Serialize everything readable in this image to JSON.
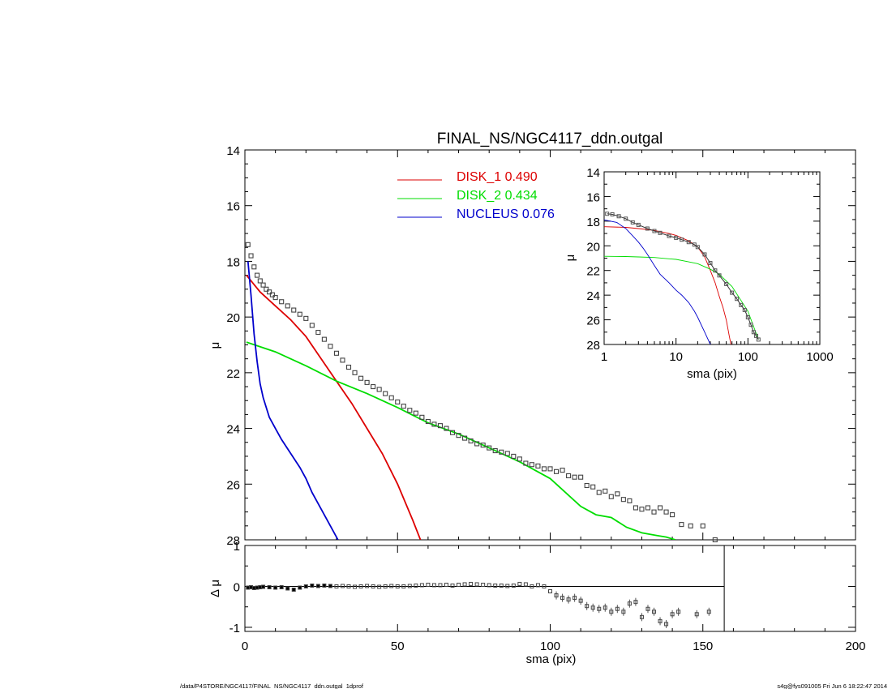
{
  "chart_data": [
    {
      "type": "scatter",
      "panel": "main profile",
      "title": "FINAL_NS/NGC4117_ddn.outgal",
      "xlabel": "",
      "ylabel": "μ",
      "xlim": [
        0,
        200
      ],
      "ylim": [
        28,
        14
      ],
      "yaxis_inverted": true,
      "xticks": [],
      "yticks": [
        "14",
        "16",
        "18",
        "20",
        "22",
        "24",
        "26",
        "28"
      ],
      "legend_placement": "top-center",
      "colors": {
        "data": "#444444",
        "disk1": "#dd0000",
        "disk2": "#00dd00",
        "nucleus": "#0000cc",
        "axes": "#000000"
      },
      "series": [
        {
          "name": "DISK_1",
          "fraction": "0.490",
          "color": "#dd0000",
          "x": [
            0.5,
            5,
            10,
            15,
            20,
            25,
            30,
            35,
            40,
            45,
            50,
            55,
            57.5
          ],
          "y": [
            18.5,
            19.1,
            19.6,
            20.1,
            20.7,
            21.5,
            22.3,
            23.1,
            24.0,
            24.9,
            26.0,
            27.3,
            28.0
          ]
        },
        {
          "name": "DISK_2",
          "fraction": "0.434",
          "color": "#00dd00",
          "x": [
            0.5,
            10,
            20,
            30,
            40,
            50,
            60,
            70,
            80,
            90,
            100,
            105,
            110,
            115,
            120,
            125,
            130,
            135,
            138,
            141
          ],
          "y": [
            20.9,
            21.25,
            21.75,
            22.3,
            22.75,
            23.25,
            23.8,
            24.2,
            24.7,
            25.2,
            25.8,
            26.3,
            26.8,
            27.1,
            27.2,
            27.55,
            27.75,
            27.85,
            27.9,
            28.0
          ]
        },
        {
          "name": "NUCLEUS",
          "fraction": "0.076",
          "color": "#0000cc",
          "x": [
            1,
            2,
            3,
            4,
            5,
            6,
            8,
            10,
            12,
            15,
            18,
            20,
            22,
            25,
            28,
            30.5
          ],
          "y": [
            18.0,
            19.2,
            20.6,
            21.6,
            22.4,
            22.9,
            23.6,
            24.0,
            24.4,
            24.9,
            25.4,
            25.8,
            26.3,
            26.9,
            27.5,
            28.0
          ]
        },
        {
          "name": "",
          "x": [
            1,
            2,
            3,
            4,
            5,
            6,
            7,
            8,
            9,
            10,
            12,
            14,
            16,
            18,
            20,
            22,
            24,
            26,
            28,
            30,
            32,
            34,
            36,
            38,
            40,
            42,
            44,
            46,
            48,
            50,
            52,
            54,
            56,
            58,
            60,
            62,
            64,
            66,
            68,
            70,
            72,
            74,
            76,
            78,
            80,
            82,
            84,
            86,
            88,
            90,
            92,
            94,
            96,
            98,
            100,
            102,
            104,
            106,
            108,
            110,
            112,
            114,
            116,
            118,
            120,
            122,
            124,
            126,
            128,
            130,
            132,
            134,
            136,
            138,
            140,
            143,
            146,
            150,
            154
          ],
          "y": [
            17.4,
            17.8,
            18.2,
            18.5,
            18.7,
            18.85,
            19.0,
            19.1,
            19.2,
            19.3,
            19.45,
            19.6,
            19.75,
            19.9,
            20.05,
            20.3,
            20.55,
            20.8,
            21.05,
            21.3,
            21.55,
            21.8,
            22.0,
            22.2,
            22.35,
            22.5,
            22.6,
            22.75,
            22.9,
            23.05,
            23.2,
            23.35,
            23.45,
            23.6,
            23.75,
            23.85,
            23.9,
            24.0,
            24.15,
            24.25,
            24.35,
            24.45,
            24.55,
            24.6,
            24.7,
            24.8,
            24.85,
            24.9,
            25.0,
            25.1,
            25.25,
            25.3,
            25.35,
            25.45,
            25.45,
            25.55,
            25.5,
            25.7,
            25.75,
            25.75,
            26.05,
            26.1,
            26.3,
            26.25,
            26.45,
            26.35,
            26.55,
            26.6,
            26.85,
            26.9,
            26.85,
            27.0,
            26.85,
            27.0,
            27.1,
            27.45,
            27.5,
            27.5,
            28.0
          ]
        }
      ]
    },
    {
      "type": "scatter",
      "panel": "residuals",
      "xlabel": "sma (pix)",
      "ylabel": "Δ μ",
      "xlim": [
        0,
        200
      ],
      "ylim": [
        -1.1,
        1.0
      ],
      "xticks": [
        "0",
        "50",
        "100",
        "150",
        "200"
      ],
      "yticks": [
        "1",
        "0",
        "-1"
      ],
      "zero_line_end_x": 157,
      "vertical_marker_x": 157,
      "series": [
        {
          "name": "",
          "x": [
            1,
            2,
            3,
            4,
            5,
            6,
            8,
            10,
            12,
            14,
            16,
            18,
            20,
            22,
            24,
            26,
            28,
            30,
            32,
            34,
            36,
            38,
            40,
            42,
            44,
            46,
            48,
            50,
            52,
            54,
            56,
            58,
            60,
            62,
            64,
            66,
            68,
            70,
            72,
            74,
            76,
            78,
            80,
            82,
            84,
            86,
            88,
            90,
            92,
            94,
            96,
            98,
            100,
            102,
            104,
            106,
            108,
            110,
            112,
            114,
            116,
            118,
            120,
            122,
            124,
            126,
            128,
            130,
            132,
            134,
            136,
            138,
            140,
            142,
            148,
            152
          ],
          "y": [
            -0.03,
            -0.02,
            -0.04,
            -0.03,
            -0.02,
            -0.01,
            -0.02,
            -0.03,
            -0.02,
            -0.05,
            -0.08,
            -0.03,
            0.0,
            0.02,
            0.01,
            0.02,
            0.01,
            0.0,
            0.01,
            0.0,
            -0.01,
            0.0,
            0.01,
            0.0,
            -0.01,
            0.0,
            0.01,
            0.0,
            0.0,
            0.01,
            0.02,
            0.03,
            0.04,
            0.03,
            0.03,
            0.04,
            0.02,
            0.04,
            0.05,
            0.06,
            0.05,
            0.04,
            0.03,
            0.02,
            0.02,
            0.01,
            0.02,
            0.06,
            0.05,
            0.0,
            0.03,
            0.0,
            -0.12,
            -0.22,
            -0.28,
            -0.32,
            -0.28,
            -0.35,
            -0.48,
            -0.52,
            -0.55,
            -0.52,
            -0.62,
            -0.55,
            -0.62,
            -0.42,
            -0.38,
            -0.75,
            -0.55,
            -0.62,
            -0.85,
            -0.92,
            -0.68,
            -0.62,
            -0.68,
            -0.62
          ]
        }
      ]
    },
    {
      "type": "scatter",
      "panel": "inset log-scale profile",
      "xlabel": "sma (pix)",
      "ylabel": "μ",
      "xscale": "log",
      "xlim": [
        1,
        1000
      ],
      "ylim": [
        28,
        14
      ],
      "yaxis_inverted": true,
      "xticks": [
        "1",
        "10",
        "100",
        "1000"
      ],
      "yticks": [
        "14",
        "16",
        "18",
        "20",
        "22",
        "24",
        "26",
        "28"
      ],
      "series": [
        {
          "name": "",
          "x": [
            1.1,
            1.3,
            1.6,
            2,
            2.5,
            3,
            4,
            5,
            6,
            8,
            10,
            12,
            15,
            18,
            20,
            25,
            30,
            35,
            40,
            50,
            60,
            70,
            80,
            90,
            100,
            110,
            120,
            130,
            140
          ],
          "y": [
            17.4,
            17.45,
            17.6,
            17.8,
            18.1,
            18.3,
            18.6,
            18.8,
            18.95,
            19.2,
            19.35,
            19.5,
            19.7,
            19.9,
            20.1,
            20.7,
            21.4,
            22.0,
            22.4,
            23.1,
            23.8,
            24.3,
            24.8,
            25.2,
            25.8,
            26.4,
            27.0,
            27.3,
            27.6
          ]
        },
        {
          "name": "DISK_1",
          "color": "#dd0000",
          "x": [
            1,
            2,
            3,
            5,
            8,
            10,
            15,
            20,
            25,
            30,
            35,
            40,
            45,
            50,
            55,
            58
          ],
          "y": [
            18.45,
            18.5,
            18.6,
            18.75,
            19.0,
            19.15,
            19.6,
            20.1,
            20.9,
            22.0,
            23.0,
            24.1,
            25.0,
            26.0,
            27.3,
            28.0
          ]
        },
        {
          "name": "DISK_2",
          "color": "#00dd00",
          "x": [
            1,
            2,
            3,
            5,
            8,
            10,
            15,
            20,
            30,
            40,
            60,
            100,
            140
          ],
          "y": [
            20.85,
            20.87,
            20.9,
            20.95,
            21.05,
            21.1,
            21.3,
            21.45,
            21.9,
            22.3,
            23.3,
            25.3,
            27.6
          ]
        },
        {
          "name": "NUCLEUS",
          "color": "#0000cc",
          "x": [
            1,
            1.5,
            2,
            2.5,
            3,
            3.5,
            4,
            5,
            6,
            8,
            10,
            12,
            15,
            18,
            20,
            25,
            30
          ],
          "y": [
            17.9,
            18.1,
            18.6,
            19.2,
            19.7,
            20.2,
            20.7,
            21.6,
            22.3,
            23.0,
            23.6,
            24.0,
            24.6,
            25.3,
            25.8,
            27.0,
            28.0
          ]
        }
      ]
    }
  ],
  "footer": {
    "left": "/data/P4STORE/NGC4117/FINAL_NS/NGC4117_ddn.outgal_1dprof",
    "right": "s4g@fys091005  Fri Jun  6 18:22:47 2014"
  }
}
